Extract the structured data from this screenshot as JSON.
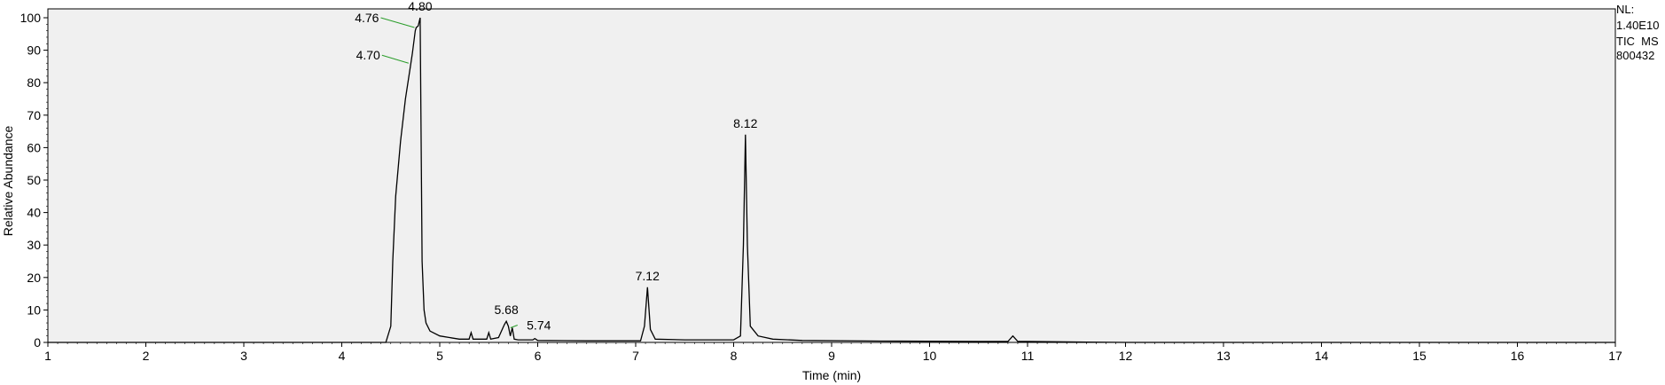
{
  "chart_data": {
    "type": "line",
    "xlabel": "Time (min)",
    "ylabel": "Relative Abundance",
    "xlim": [
      1,
      17
    ],
    "ylim": [
      0,
      100
    ],
    "xticks": [
      1,
      2,
      3,
      4,
      5,
      6,
      7,
      8,
      9,
      10,
      11,
      12,
      13,
      14,
      15,
      16,
      17
    ],
    "yticks": [
      0,
      10,
      20,
      30,
      40,
      50,
      60,
      70,
      80,
      90,
      100
    ],
    "info": [
      "NL:",
      "1.40E10",
      "TIC  MS",
      "800432"
    ],
    "series": [
      {
        "x": [
          1.0,
          2.0,
          3.0,
          4.0,
          4.45,
          4.5,
          4.52,
          4.55,
          4.6,
          4.65,
          4.7,
          4.72,
          4.75,
          4.76,
          4.78,
          4.8,
          4.82,
          4.84,
          4.86,
          4.9,
          5.0,
          5.1,
          5.2,
          5.3,
          5.32,
          5.34,
          5.4,
          5.48,
          5.5,
          5.52,
          5.6,
          5.66,
          5.68,
          5.7,
          5.72,
          5.74,
          5.76,
          5.8,
          5.95,
          5.97,
          6.0,
          6.5,
          7.05,
          7.09,
          7.12,
          7.15,
          7.2,
          7.5,
          8.0,
          8.07,
          8.1,
          8.12,
          8.14,
          8.17,
          8.25,
          8.4,
          8.7,
          9.5,
          10.5,
          10.8,
          10.85,
          10.9,
          11.0,
          11.6,
          12.0,
          14.0,
          17.0
        ],
        "values": [
          0,
          0,
          0,
          0,
          0,
          5,
          25,
          45,
          62,
          75,
          85,
          89,
          96,
          97,
          97.5,
          100,
          25,
          10,
          6,
          3.5,
          2,
          1.5,
          1,
          1,
          3,
          1,
          1,
          1,
          3,
          1,
          1.5,
          5.5,
          6.5,
          5,
          2,
          4.5,
          1,
          0.8,
          0.8,
          1.2,
          0.6,
          0.5,
          0.5,
          5,
          17,
          4,
          1,
          0.8,
          0.8,
          2,
          30,
          64,
          30,
          5,
          2,
          1,
          0.6,
          0.4,
          0.3,
          0.3,
          2,
          0.3,
          0.3,
          0.1,
          0,
          0,
          0
        ]
      }
    ],
    "peak_labels": [
      {
        "text": "4.80",
        "x": 4.8,
        "y": 100
      },
      {
        "text": "4.76",
        "x": 4.76,
        "y": 97
      },
      {
        "text": "4.70",
        "x": 4.7,
        "y": 86
      },
      {
        "text": "8.12",
        "x": 8.12,
        "y": 64
      },
      {
        "text": "7.12",
        "x": 7.12,
        "y": 17
      },
      {
        "text": "5.68",
        "x": 5.68,
        "y": 6.5
      },
      {
        "text": "5.74",
        "x": 5.74,
        "y": 4.5
      }
    ]
  }
}
